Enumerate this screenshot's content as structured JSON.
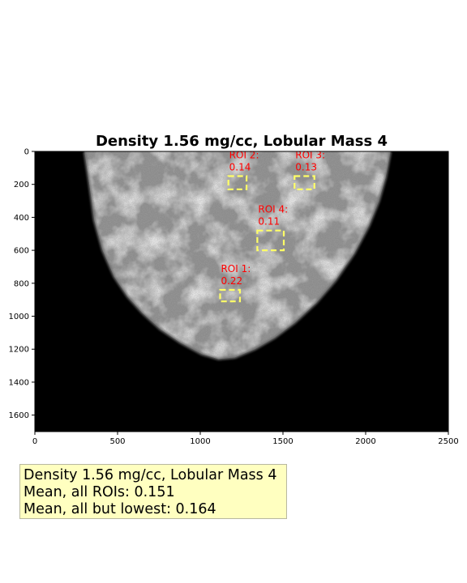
{
  "chart_data": {
    "type": "image",
    "title": "Density 1.56 mg/cc, Lobular Mass 4",
    "xlabel": "",
    "ylabel": "",
    "xlim": [
      0,
      2500
    ],
    "ylim": [
      1700,
      0
    ],
    "x_ticks": [
      0,
      500,
      1000,
      1500,
      2000,
      2500
    ],
    "y_ticks": [
      0,
      200,
      400,
      600,
      800,
      1000,
      1200,
      1400,
      1600
    ],
    "tissue_boundary": [
      [
        300,
        0
      ],
      [
        330,
        200
      ],
      [
        360,
        420
      ],
      [
        410,
        600
      ],
      [
        480,
        760
      ],
      [
        560,
        880
      ],
      [
        650,
        980
      ],
      [
        760,
        1080
      ],
      [
        880,
        1160
      ],
      [
        1010,
        1230
      ],
      [
        1110,
        1260
      ],
      [
        1210,
        1250
      ],
      [
        1330,
        1200
      ],
      [
        1450,
        1130
      ],
      [
        1570,
        1040
      ],
      [
        1700,
        920
      ],
      [
        1820,
        780
      ],
      [
        1930,
        620
      ],
      [
        2020,
        450
      ],
      [
        2080,
        300
      ],
      [
        2120,
        160
      ],
      [
        2150,
        0
      ]
    ],
    "rois": [
      {
        "label": "ROI 1:",
        "value": "0.22",
        "x": [
          1120,
          1240
        ],
        "y": [
          840,
          910
        ]
      },
      {
        "label": "ROI 2:",
        "value": "0.14",
        "x": [
          1170,
          1280
        ],
        "y": [
          150,
          230
        ]
      },
      {
        "label": "ROI 3:",
        "value": "0.13",
        "x": [
          1570,
          1690
        ],
        "y": [
          150,
          230
        ]
      },
      {
        "label": "ROI 4:",
        "value": "0.11",
        "x": [
          1345,
          1505
        ],
        "y": [
          480,
          600
        ]
      }
    ],
    "roi_color": "#ffff66",
    "roi_label_color": "#ff0000"
  },
  "summary": {
    "line1": "Density 1.56 mg/cc, Lobular Mass 4",
    "line2": "Mean, all ROIs: 0.151",
    "line3": "Mean, all but lowest: 0.164"
  }
}
